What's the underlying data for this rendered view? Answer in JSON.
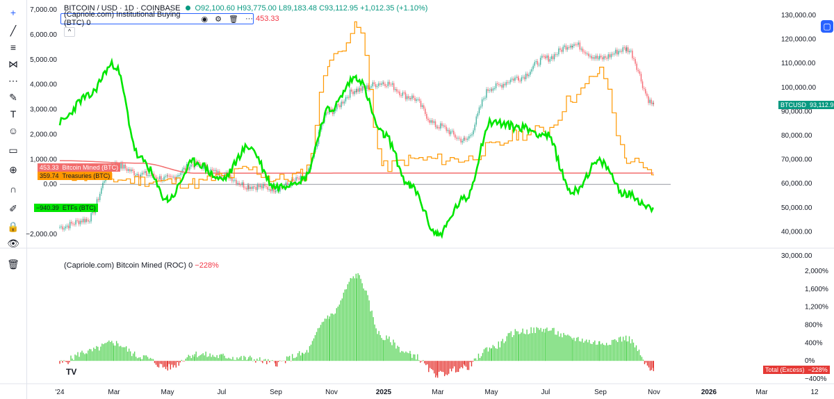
{
  "header": {
    "symbol": "BITCOIN / USD · 1D · COINBASE",
    "ohlc": "O92,100.60 H93,775.00 L89,183.48 C93,112.95 +1,012.35 (+1.10%)",
    "indicator_title": "(Capriole.com) Institutional Buying (BTC) 0",
    "indicator_value": "453.33",
    "collapse": "^",
    "logo": "TV"
  },
  "roc_legend": {
    "title": "(Capriole.com) Bitcoin Mined (ROC) 0",
    "value": "−228%"
  },
  "tags": {
    "btc_mined": {
      "val": "453.33",
      "label": "Bitcoin Mined (BTC)"
    },
    "treasuries": {
      "val": "359.74",
      "label": "Treasuries (BTC)"
    },
    "etfs": {
      "val": "−940.39",
      "label": "ETFs (BTC)"
    },
    "btcusd": {
      "label": "BTCUSD",
      "val": "93,112.95"
    },
    "total": {
      "label": "Total (Excess)",
      "val": "−228%"
    }
  },
  "colors": {
    "up": "#089981",
    "down": "#f23645",
    "etf": "#00e600",
    "treasuries": "#ff9800",
    "mined": "#f26d6d",
    "roc_up": "#5dd55d",
    "roc_down": "#e53935",
    "accent": "#2962ff"
  },
  "toolbar": [
    "crosshair-icon",
    "trendline-icon",
    "fib-icon",
    "pattern-icon",
    "forecast-icon",
    "brush-icon",
    "text-icon",
    "emoji-icon",
    "ruler-icon",
    "zoom-icon",
    "magnet-icon",
    "lock-drawing-icon",
    "lock-icon",
    "eye-icon",
    "trash-icon"
  ],
  "chart_data": [
    {
      "type": "line",
      "title": "BITCOIN / USD · 1D · COINBASE",
      "x_ticks": [
        "'24",
        "Mar",
        "May",
        "Jul",
        "Sep",
        "Nov",
        "2025",
        "Mar",
        "May",
        "Jul",
        "Sep",
        "Nov",
        "2026",
        "Mar",
        "12"
      ],
      "left_axis": {
        "ticks": [
          7000,
          6000,
          5000,
          4000,
          3000,
          2000,
          1000,
          0,
          -2000
        ],
        "labels": [
          "7,000.00",
          "6,000.00",
          "5,000.00",
          "4,000.00",
          "3,000.00",
          "2,000.00",
          "1,000.00",
          "0.00",
          "−2,000.00"
        ]
      },
      "right_axis": {
        "ticks": [
          130000,
          120000,
          110000,
          100000,
          90000,
          80000,
          70000,
          60000,
          50000,
          40000,
          30000
        ],
        "labels": [
          "130,000.00",
          "120,000.00",
          "110,000.00",
          "100,000.00",
          "90,000.00",
          "80,000.00",
          "70,000.00",
          "60,000.00",
          "50,000.00",
          "40,000.00",
          "30,000.00"
        ]
      },
      "series": [
        {
          "name": "BTCUSD",
          "axis": "right",
          "x": [
            "2024-01",
            "2024-02",
            "2024-03",
            "2024-04",
            "2024-05",
            "2024-06",
            "2024-07",
            "2024-08",
            "2024-09",
            "2024-10",
            "2024-11",
            "2024-12",
            "2025-01",
            "2025-02",
            "2025-03",
            "2025-04",
            "2025-05",
            "2025-06",
            "2025-07",
            "2025-08",
            "2025-09",
            "2025-10",
            "2025-11"
          ],
          "values": [
            42000,
            45000,
            68000,
            64000,
            62000,
            68000,
            64000,
            59000,
            58000,
            62000,
            90000,
            99000,
            102000,
            96000,
            84000,
            78000,
            100000,
            104000,
            112000,
            118000,
            112000,
            116000,
            93000
          ]
        },
        {
          "name": "ETFs (BTC)",
          "axis": "left",
          "x": [
            "2024-01",
            "2024-02",
            "2024-03",
            "2024-04",
            "2024-05",
            "2024-06",
            "2024-07",
            "2024-08",
            "2024-09",
            "2024-10",
            "2024-11",
            "2024-12",
            "2025-01",
            "2025-02",
            "2025-03",
            "2025-04",
            "2025-05",
            "2025-06",
            "2025-07",
            "2025-08",
            "2025-09",
            "2025-10",
            "2025-11"
          ],
          "values": [
            2500,
            3500,
            4800,
            1000,
            -600,
            900,
            200,
            1500,
            -100,
            200,
            3000,
            4300,
            2000,
            -100,
            -2000,
            -600,
            2500,
            2300,
            2000,
            -300,
            900,
            -400,
            -940
          ]
        },
        {
          "name": "Treasuries (BTC)",
          "axis": "left",
          "x": [
            "2024-01",
            "2024-02",
            "2024-03",
            "2024-04",
            "2024-05",
            "2024-06",
            "2024-07",
            "2024-08",
            "2024-09",
            "2024-10",
            "2024-11",
            "2024-12",
            "2025-01",
            "2025-02",
            "2025-03",
            "2025-04",
            "2025-05",
            "2025-06",
            "2025-07",
            "2025-08",
            "2025-09",
            "2025-10",
            "2025-11"
          ],
          "values": [
            400,
            300,
            200,
            150,
            100,
            50,
            300,
            600,
            200,
            400,
            5000,
            6300,
            700,
            1000,
            1000,
            1000,
            1500,
            2000,
            2200,
            3500,
            4500,
            1000,
            360
          ]
        },
        {
          "name": "Bitcoin Mined (BTC)",
          "axis": "left",
          "x": [
            "2024-01",
            "2024-04",
            "2024-06",
            "2025-11"
          ],
          "values": [
            950,
            850,
            450,
            453
          ]
        },
        {
          "name": "Bitcoin Mined (ROC)",
          "axis": "roc",
          "x": [
            "2024-01",
            "2024-02",
            "2024-03",
            "2024-04",
            "2024-05",
            "2024-06",
            "2024-07",
            "2024-08",
            "2024-09",
            "2024-10",
            "2024-11",
            "2024-12",
            "2025-01",
            "2025-02",
            "2025-03",
            "2025-04",
            "2025-05",
            "2025-06",
            "2025-07",
            "2025-08",
            "2025-09",
            "2025-10",
            "2025-11"
          ],
          "values": [
            -50,
            200,
            400,
            100,
            -150,
            150,
            100,
            50,
            -50,
            150,
            1000,
            1900,
            500,
            150,
            -300,
            -150,
            300,
            650,
            700,
            500,
            400,
            500,
            -228
          ]
        }
      ],
      "roc_axis": {
        "ticks": [
          2000,
          1600,
          1200,
          800,
          400,
          0,
          -400
        ],
        "labels": [
          "2,000%",
          "1,600%",
          "1,200%",
          "800%",
          "400%",
          "0%",
          "−400%"
        ]
      }
    }
  ]
}
